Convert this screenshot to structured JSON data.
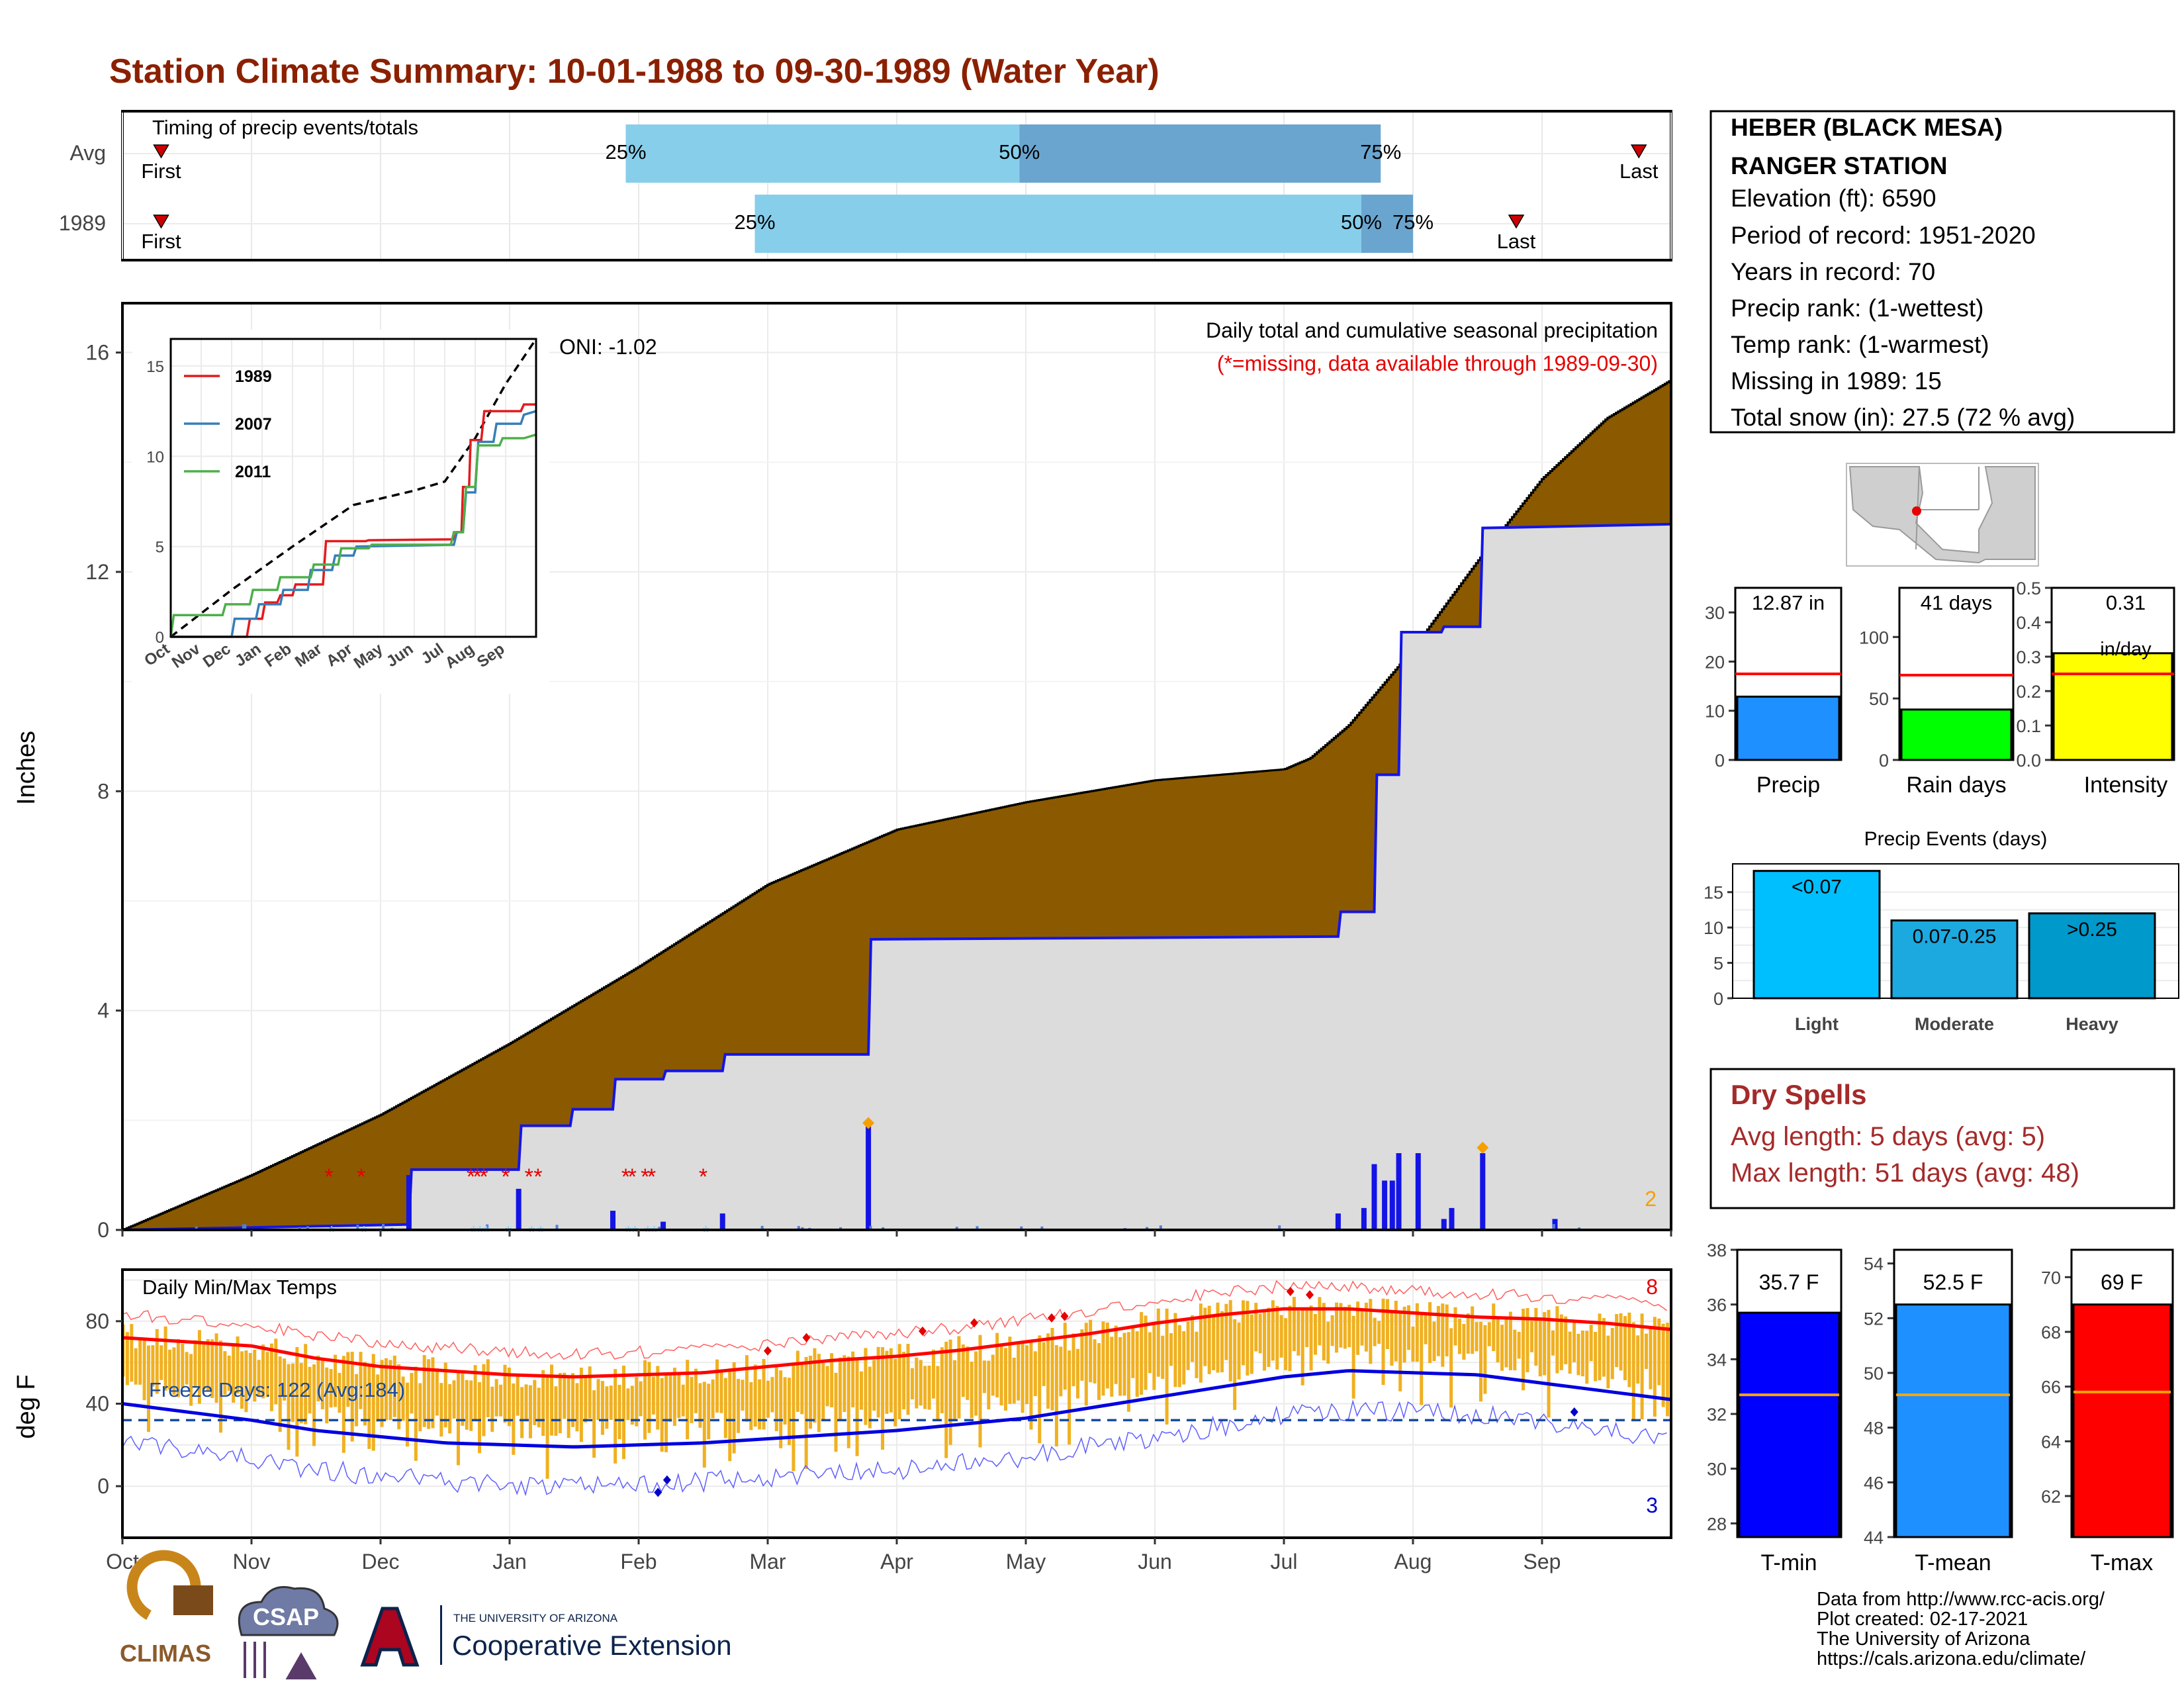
{
  "page_title": "Station Climate Summary: 10-01-1988 to 09-30-1989 (Water Year)",
  "colors": {
    "title": "#8b2000",
    "brown": "#8b5a00",
    "grey_fill": "#dcdcdc",
    "blue": "#1414e6",
    "red": "#e60000",
    "gold": "#f0b020",
    "light_blue": "#87ceeb",
    "mid_blue": "#6aa5cf",
    "dry_text": "#a52a2a"
  },
  "timing_panel": {
    "title": "Timing of precip events/totals",
    "rows": [
      "Avg",
      "1989"
    ],
    "avg_bar": {
      "start": 3.9,
      "p50": 6.95,
      "end": 9.75
    },
    "obs_bar": {
      "start": 4.9,
      "p50": 9.6,
      "end": 10.0
    },
    "avg_first": 0.3,
    "avg_last": 11.75,
    "obs_first": 0.3,
    "obs_last": 10.8,
    "labels": {
      "first": "First",
      "last": "Last",
      "p25": "25%",
      "p50": "50%",
      "p75": "75%"
    }
  },
  "main_chart": {
    "ylabel": "Inches",
    "yticks": [
      "0",
      "4",
      "8",
      "12",
      "16"
    ],
    "ytick_values": [
      0,
      4,
      8,
      12,
      16
    ],
    "subtitle": "Daily total and cumulative seasonal precipitation",
    "missing_note": "(*=missing, data available through 1989-09-30)",
    "oni": "ONI: -1.02",
    "corner_count": "2",
    "avg_cumulative": {
      "x": [
        0,
        1,
        2,
        3,
        4,
        5,
        6,
        7,
        8,
        9,
        9.2,
        9.5,
        10,
        10.5,
        11,
        11.5,
        12
      ],
      "y": [
        0,
        1.0,
        2.1,
        3.4,
        4.8,
        6.3,
        7.3,
        7.8,
        8.2,
        8.4,
        8.6,
        9.2,
        10.6,
        12.2,
        13.7,
        14.8,
        15.5
      ]
    },
    "obs_cumulative": {
      "x": [
        0,
        2.22,
        2.24,
        3.07,
        3.09,
        3.47,
        3.49,
        3.8,
        3.82,
        4.19,
        4.21,
        4.65,
        4.67,
        5.78,
        5.8,
        9.42,
        9.44,
        9.7,
        9.72,
        9.89,
        9.91,
        10.22,
        10.24,
        10.52,
        10.54,
        12
      ],
      "y": [
        0,
        0.1,
        1.1,
        1.1,
        1.9,
        1.9,
        2.2,
        2.2,
        2.75,
        2.75,
        2.9,
        2.9,
        3.2,
        3.2,
        5.3,
        5.35,
        5.8,
        5.8,
        8.3,
        8.3,
        10.9,
        10.9,
        11.0,
        11.0,
        12.8,
        12.87
      ]
    },
    "daily_bars": [
      [
        2.22,
        1.0
      ],
      [
        3.07,
        0.75
      ],
      [
        3.8,
        0.35
      ],
      [
        4.19,
        0.15
      ],
      [
        4.65,
        0.3
      ],
      [
        5.78,
        1.95
      ],
      [
        9.42,
        0.3
      ],
      [
        9.62,
        0.4
      ],
      [
        9.7,
        1.2
      ],
      [
        9.78,
        0.9
      ],
      [
        9.84,
        0.9
      ],
      [
        9.89,
        1.4
      ],
      [
        10.04,
        1.4
      ],
      [
        10.24,
        0.2
      ],
      [
        10.3,
        0.4
      ],
      [
        10.54,
        1.4
      ],
      [
        11.1,
        0.2
      ]
    ],
    "missing_marks": [
      1.6,
      1.85,
      2.7,
      2.75,
      2.8,
      2.97,
      3.15,
      3.22,
      3.9,
      3.95,
      4.05,
      4.1,
      4.5
    ],
    "diamond_marks": [
      [
        5.78,
        1.95
      ],
      [
        10.54,
        1.5
      ]
    ]
  },
  "inset_chart": {
    "yticks": [
      "0",
      "5",
      "10",
      "15"
    ],
    "xticks": [
      "Oct",
      "Nov",
      "Dec",
      "Jan",
      "Feb",
      "Mar",
      "Apr",
      "May",
      "Jun",
      "Jul",
      "Aug",
      "Sep"
    ],
    "series": [
      {
        "name": "1989",
        "color": "#e41a1c",
        "x": [
          0,
          2.5,
          2.6,
          3.0,
          3.1,
          3.5,
          3.6,
          4.0,
          4.1,
          5.0,
          5.1,
          6.4,
          6.5,
          9.3,
          9.4,
          9.55,
          9.6,
          9.8,
          9.85,
          10.2,
          10.3,
          11.5,
          11.6,
          12
        ],
        "y": [
          0,
          0,
          1.0,
          1.0,
          1.9,
          1.9,
          2.3,
          2.3,
          2.9,
          2.9,
          5.3,
          5.3,
          5.35,
          5.4,
          5.8,
          5.8,
          8.3,
          8.3,
          10.9,
          10.9,
          12.5,
          12.5,
          12.87,
          12.87
        ]
      },
      {
        "name": "2007",
        "color": "#377eb8",
        "x": [
          0,
          2.0,
          2.1,
          2.8,
          2.9,
          3.6,
          3.7,
          4.5,
          4.6,
          5.3,
          5.4,
          6.0,
          6.1,
          9.3,
          9.4,
          9.6,
          9.7,
          10.0,
          10.1,
          10.6,
          10.7,
          11.5,
          11.6,
          12
        ],
        "y": [
          0,
          0,
          1.0,
          1.0,
          1.8,
          1.8,
          2.6,
          2.6,
          3.7,
          3.7,
          4.5,
          4.5,
          5.0,
          5.1,
          5.8,
          5.8,
          8.0,
          8.0,
          10.8,
          10.8,
          11.8,
          11.8,
          12.3,
          12.5
        ]
      },
      {
        "name": "2011",
        "color": "#4daf4a",
        "x": [
          0,
          0.1,
          1.7,
          1.8,
          2.6,
          2.7,
          3.5,
          3.6,
          4.6,
          4.7,
          5.5,
          5.6,
          6.5,
          6.6,
          9.2,
          9.3,
          9.6,
          9.7,
          10.0,
          10.1,
          10.8,
          10.9,
          11.6,
          12
        ],
        "y": [
          0,
          1.2,
          1.2,
          1.8,
          1.8,
          2.6,
          2.6,
          3.3,
          3.3,
          4.0,
          4.0,
          4.9,
          4.9,
          5.1,
          5.1,
          5.8,
          5.8,
          8.3,
          8.3,
          10.6,
          10.6,
          11.0,
          11.0,
          11.2
        ]
      }
    ],
    "avg_dashed": {
      "x": [
        0,
        2,
        4,
        6,
        8,
        9,
        10,
        11,
        12
      ],
      "y": [
        0,
        2.6,
        5.0,
        7.3,
        8.1,
        8.6,
        11.0,
        14.0,
        16.5
      ]
    }
  },
  "temp_chart": {
    "ylabel": "deg F",
    "title": "Daily Min/Max Temps",
    "freeze_note": "Freeze Days: 122 (Avg:184)",
    "yticks": [
      "0",
      "40",
      "80"
    ],
    "ytick_values": [
      0,
      40,
      80
    ],
    "top_count": "8",
    "bottom_count": "3",
    "freeze_line": 32,
    "normal_max": {
      "x": [
        0,
        0.5,
        1,
        1.5,
        2,
        2.5,
        3,
        3.5,
        4,
        4.5,
        5,
        5.5,
        6,
        6.5,
        7,
        7.5,
        8,
        8.5,
        9,
        9.5,
        10,
        10.5,
        11,
        11.5,
        12
      ],
      "y": [
        72,
        70,
        68,
        62,
        58,
        56,
        54,
        53,
        54,
        55,
        58,
        61,
        63,
        66,
        70,
        74,
        79,
        83,
        86,
        86,
        84,
        82,
        81,
        79,
        76
      ]
    },
    "normal_min": {
      "x": [
        0,
        0.5,
        1,
        1.5,
        2,
        2.5,
        3,
        3.5,
        4,
        4.5,
        5,
        5.5,
        6,
        6.5,
        7,
        7.5,
        8,
        8.5,
        9,
        9.5,
        10,
        10.5,
        11,
        11.5,
        12
      ],
      "y": [
        40,
        36,
        32,
        27,
        24,
        21,
        20,
        19,
        20,
        21,
        23,
        25,
        27,
        30,
        33,
        38,
        43,
        48,
        53,
        56,
        55,
        54,
        50,
        46,
        42
      ]
    }
  },
  "month_axis": [
    "Oct",
    "Nov",
    "Dec",
    "Jan",
    "Feb",
    "Mar",
    "Apr",
    "May",
    "Jun",
    "Jul",
    "Aug",
    "Sep"
  ],
  "station_box": {
    "name_line1": "HEBER (BLACK MESA)",
    "name_line2": "RANGER STATION",
    "elevation": "Elevation (ft): 6590",
    "period": "Period of record: 1951-2020",
    "years": "Years in record: 70",
    "precip_rank": "Precip rank:  (1-wettest)",
    "temp_rank": "Temp rank:  (1-warmest)",
    "missing": "Missing in 1989: 15",
    "snow": "Total snow (in): 27.5 (72 % avg)"
  },
  "mini_bars": [
    {
      "label": "Precip",
      "value_label": "12.87 in",
      "value": 12.87,
      "avg": 17.5,
      "ymax": 35,
      "ticks": [
        "0",
        "10",
        "20",
        "30"
      ],
      "tick_values": [
        0,
        10,
        20,
        30
      ],
      "color": "#1e90ff"
    },
    {
      "label": "Rain days",
      "value_label": "41 days",
      "value": 41,
      "avg": 69,
      "ymax": 140,
      "ticks": [
        "0",
        "50",
        "100"
      ],
      "tick_values": [
        0,
        50,
        100
      ],
      "color": "#00ff00"
    },
    {
      "label": "Intensity",
      "value_label": "0.31",
      "value_label2": "in/day",
      "value": 0.31,
      "avg": 0.25,
      "ymax": 0.5,
      "ticks": [
        "0.0",
        "0.1",
        "0.2",
        "0.3",
        "0.4",
        "0.5"
      ],
      "tick_values": [
        0,
        0.1,
        0.2,
        0.3,
        0.4,
        0.5
      ],
      "color": "#ffff00"
    }
  ],
  "precip_events": {
    "title": "Precip Events (days)",
    "ticks": [
      "0",
      "5",
      "10",
      "15"
    ],
    "tick_values": [
      0,
      5,
      10,
      15
    ],
    "ymax": 19,
    "bars": [
      {
        "label": "Light",
        "value": 18,
        "value_label": "<0.07",
        "color": "#00bfff"
      },
      {
        "label": "Moderate",
        "value": 11,
        "value_label": "0.07-0.25",
        "color": "#1ca9e0"
      },
      {
        "label": "Heavy",
        "value": 12,
        "value_label": ">0.25",
        "color": "#0099cc"
      }
    ]
  },
  "dry_spells": {
    "title": "Dry Spells",
    "avg_length": "Avg length: 5 days (avg: 5)",
    "max_length": "Max length: 51 days (avg: 48)"
  },
  "temp_bars": [
    {
      "label": "T-min",
      "value_label": "35.7 F",
      "value": 35.7,
      "avg": 32.7,
      "ymin": 27.5,
      "ymax": 38,
      "ticks": [
        "28",
        "30",
        "32",
        "34",
        "36",
        "38"
      ],
      "tick_values": [
        28,
        30,
        32,
        34,
        36,
        38
      ],
      "color": "#0000ff"
    },
    {
      "label": "T-mean",
      "value_label": "52.5 F",
      "value": 52.5,
      "avg": 49.2,
      "ymin": 44,
      "ymax": 54.5,
      "ticks": [
        "44",
        "46",
        "48",
        "50",
        "52",
        "54"
      ],
      "tick_values": [
        44,
        46,
        48,
        50,
        52,
        54
      ],
      "color": "#1e90ff"
    },
    {
      "label": "T-max",
      "value_label": "69 F",
      "value": 69,
      "avg": 65.8,
      "ymin": 60.5,
      "ymax": 71,
      "ticks": [
        "62",
        "64",
        "66",
        "68",
        "70"
      ],
      "tick_values": [
        62,
        64,
        66,
        68,
        70
      ],
      "color": "#ff0000"
    }
  ],
  "footer": {
    "line1": "Data from http://www.rcc-acis.org/",
    "line2": "Plot created: 02-17-2021",
    "line3": "The University of Arizona",
    "line4": "https://cals.arizona.edu/climate/",
    "logo_climas": "CLIMAS",
    "logo_csap": "CSAP",
    "logo_ua_small": "THE UNIVERSITY OF ARIZONA",
    "logo_ua_big": "Cooperative Extension"
  },
  "chart_data": [
    {
      "type": "bar",
      "title": "Timing of precip events/totals",
      "categories": [
        "Avg",
        "1989"
      ]
    },
    {
      "type": "area",
      "title": "Daily total and cumulative seasonal precipitation",
      "ylabel": "Inches",
      "ylim": [
        0,
        16.5
      ],
      "x": [
        "Oct",
        "Nov",
        "Dec",
        "Jan",
        "Feb",
        "Mar",
        "Apr",
        "May",
        "Jun",
        "Jul",
        "Aug",
        "Sep"
      ],
      "series": [
        {
          "name": "1989",
          "values": [
            0.1,
            0.1,
            1.1,
            2.2,
            2.9,
            5.3,
            5.35,
            5.4,
            5.4,
            5.8,
            10.9,
            12.8
          ]
        }
      ]
    },
    {
      "type": "line",
      "series": [
        {
          "name": "1989"
        },
        {
          "name": "2007"
        },
        {
          "name": "2011"
        }
      ],
      "ylim": [
        0,
        16
      ]
    },
    {
      "type": "line",
      "title": "Daily Min/Max Temps",
      "ylabel": "deg F",
      "ylim": [
        -25,
        105
      ]
    },
    {
      "type": "bar",
      "categories": [
        "Precip",
        "Rain days",
        "Intensity"
      ],
      "values": [
        12.87,
        41,
        0.31
      ]
    },
    {
      "type": "bar",
      "title": "Precip Events (days)",
      "categories": [
        "Light",
        "Moderate",
        "Heavy"
      ],
      "values": [
        18,
        11,
        12
      ]
    },
    {
      "type": "bar",
      "categories": [
        "T-min",
        "T-mean",
        "T-max"
      ],
      "values": [
        35.7,
        52.5,
        69
      ]
    }
  ]
}
